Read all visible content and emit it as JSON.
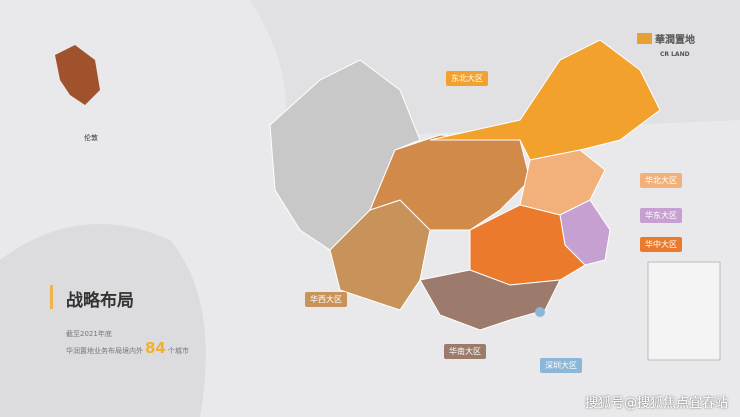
{
  "heading": "战略布局",
  "subtitle": "截至2021年底",
  "summary": {
    "prefix": "华润置地业务布局境内外",
    "count": "84",
    "suffix": "个城市"
  },
  "logo": {
    "cn": "華潤置地",
    "en": "CR LAND",
    "color": "#e7a032"
  },
  "london_label": "伦敦",
  "regions": [
    {
      "name": "东北大区",
      "color": "#f2a22c"
    },
    {
      "name": "华北大区",
      "color": "#f2b07a"
    },
    {
      "name": "华东大区",
      "color": "#c7a0d2"
    },
    {
      "name": "华中大区",
      "color": "#ec7a2c"
    },
    {
      "name": "华西大区",
      "color": "#c8935a"
    },
    {
      "name": "华南大区",
      "color": "#9c7a6c"
    },
    {
      "name": "深圳大区",
      "color": "#8cb6d8"
    }
  ],
  "watermark": "搜狐号@搜狐焦点宜春站"
}
